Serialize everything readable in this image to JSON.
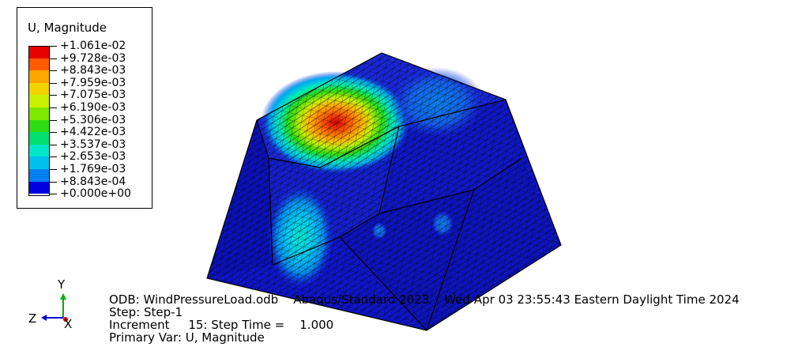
{
  "legend": {
    "title": "U, Magnitude",
    "entries": [
      {
        "value": "+1.061e-02",
        "color": "#e80000"
      },
      {
        "value": "+9.728e-03",
        "color": "#ff5a00"
      },
      {
        "value": "+8.843e-03",
        "color": "#ffa500"
      },
      {
        "value": "+7.959e-03",
        "color": "#f3d300"
      },
      {
        "value": "+7.075e-03",
        "color": "#c8f000"
      },
      {
        "value": "+6.190e-03",
        "color": "#7ce800"
      },
      {
        "value": "+5.306e-03",
        "color": "#2fdc12"
      },
      {
        "value": "+4.422e-03",
        "color": "#00e070"
      },
      {
        "value": "+3.537e-03",
        "color": "#00e8c8"
      },
      {
        "value": "+2.653e-03",
        "color": "#00c0f0"
      },
      {
        "value": "+1.769e-03",
        "color": "#0080f0"
      },
      {
        "value": "+8.843e-04",
        "color": "#0040e8"
      },
      {
        "value": "+0.000e+00",
        "color": "#0000e0"
      }
    ]
  },
  "info": {
    "odb": "ODB: WindPressureLoad.odb    Abaqus/Standard 2023    Wed Apr 03 23:55:43 Eastern Daylight Time 2024",
    "step": "Step: Step-1",
    "increment": "Increment     15: Step Time =    1.000",
    "primary_var": "Primary Var: U, Magnitude"
  },
  "triad": {
    "y_label": "Y",
    "z_label": "Z",
    "x_label": "X"
  },
  "colors": {
    "mesh_base": "#0f16cc",
    "mesh_line": "#000000"
  }
}
